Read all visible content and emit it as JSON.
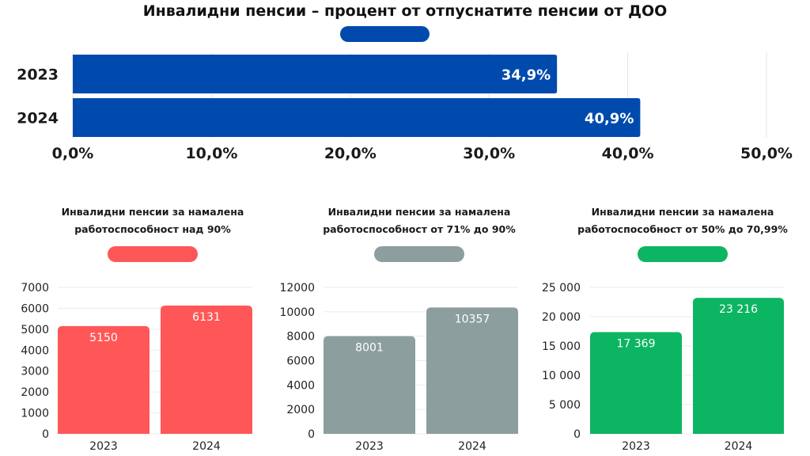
{
  "chart_data": [
    {
      "type": "bar",
      "orientation": "horizontal",
      "title": "Инвалидни пенсии – процент от отпуснатите пенсии от ДОО",
      "legend_color": "#004aad",
      "categories": [
        "2023",
        "2024"
      ],
      "values": [
        34.9,
        40.9
      ],
      "value_labels": [
        "34,9%",
        "40,9%"
      ],
      "xlabel": "",
      "ylabel": "",
      "xlim": [
        0,
        50
      ],
      "x_ticks": [
        0,
        10,
        20,
        30,
        40,
        50
      ],
      "x_tick_labels": [
        "0,0%",
        "10,0%",
        "20,0%",
        "30,0%",
        "40,0%",
        "50,0%"
      ],
      "grid": true,
      "color": "#004aad"
    },
    {
      "type": "bar",
      "title_lines": [
        "Инвалидни пенсии за намалена",
        "работоспособност над 90%"
      ],
      "legend_color": "#ff5757",
      "categories": [
        "2023",
        "2024"
      ],
      "values": [
        5150,
        6131
      ],
      "value_labels": [
        "5150",
        "6131"
      ],
      "ylim": [
        0,
        7000
      ],
      "y_ticks": [
        0,
        1000,
        2000,
        3000,
        4000,
        5000,
        6000,
        7000
      ],
      "y_tick_labels": [
        "0",
        "1000",
        "2000",
        "3000",
        "4000",
        "5000",
        "6000",
        "7000"
      ],
      "grid": true,
      "color": "#ff5757"
    },
    {
      "type": "bar",
      "title_lines": [
        "Инвалидни пенсии за намалена",
        "работоспособност от 71% до 90%"
      ],
      "legend_color": "#8c9e9e",
      "categories": [
        "2023",
        "2024"
      ],
      "values": [
        8001,
        10357
      ],
      "value_labels": [
        "8001",
        "10357"
      ],
      "ylim": [
        0,
        12000
      ],
      "y_ticks": [
        0,
        2000,
        4000,
        6000,
        8000,
        10000,
        12000
      ],
      "y_tick_labels": [
        "0",
        "2000",
        "4000",
        "6000",
        "8000",
        "10000",
        "12000"
      ],
      "grid": true,
      "color": "#8c9e9e"
    },
    {
      "type": "bar",
      "title_lines": [
        "Инвалидни пенсии за намалена",
        "работоспособност от 50% до 70,99%"
      ],
      "legend_color": "#0cb561",
      "categories": [
        "2023",
        "2024"
      ],
      "values": [
        17369,
        23216
      ],
      "value_labels": [
        "17 369",
        "23 216"
      ],
      "ylim": [
        0,
        25000
      ],
      "y_ticks": [
        0,
        5000,
        10000,
        15000,
        20000,
        25000
      ],
      "y_tick_labels": [
        "0",
        "5 000",
        "10 000",
        "15 000",
        "20 000",
        "25 000"
      ],
      "grid": true,
      "color": "#0cb561"
    }
  ]
}
